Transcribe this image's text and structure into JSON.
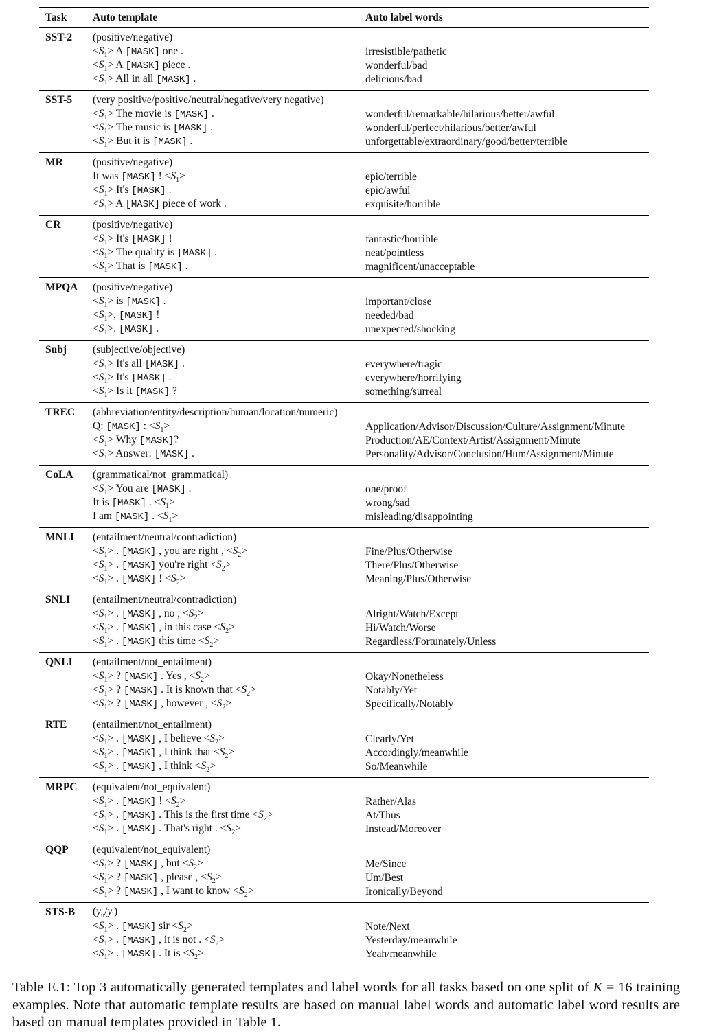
{
  "table": {
    "headers": [
      "Task",
      "Auto template",
      "Auto label words"
    ],
    "rows": [
      {
        "task": "SST-2",
        "labels": "(positive/negative)",
        "items": [
          [
            "<S1> A [MASK] one .",
            "irresistible/pathetic"
          ],
          [
            "<S1> A [MASK] piece .",
            "wonderful/bad"
          ],
          [
            "<S1> All in all [MASK] .",
            "delicious/bad"
          ]
        ]
      },
      {
        "task": "SST-5",
        "labels": "(very positive/positive/neutral/negative/very negative)",
        "items": [
          [
            "<S1> The movie is [MASK] .",
            "wonderful/remarkable/hilarious/better/awful"
          ],
          [
            "<S1> The music is [MASK] .",
            "wonderful/perfect/hilarious/better/awful"
          ],
          [
            "<S1> But it is [MASK] .",
            "unforgettable/extraordinary/good/better/terrible"
          ]
        ]
      },
      {
        "task": "MR",
        "labels": "(positive/negative)",
        "items": [
          [
            "It was [MASK] ! <S1>",
            "epic/terrible"
          ],
          [
            "<S1> It's [MASK] .",
            "epic/awful"
          ],
          [
            "<S1> A [MASK] piece of work .",
            "exquisite/horrible"
          ]
        ]
      },
      {
        "task": "CR",
        "labels": "(positive/negative)",
        "items": [
          [
            "<S1> It's [MASK] !",
            "fantastic/horrible"
          ],
          [
            "<S1> The quality is [MASK] .",
            "neat/pointless"
          ],
          [
            "<S1> That is [MASK] .",
            "magnificent/unacceptable"
          ]
        ]
      },
      {
        "task": "MPQA",
        "labels": "(positive/negative)",
        "items": [
          [
            "<S1> is [MASK] .",
            "important/close"
          ],
          [
            "<S1>, [MASK] !",
            "needed/bad"
          ],
          [
            "<S1>. [MASK] .",
            "unexpected/shocking"
          ]
        ]
      },
      {
        "task": "Subj",
        "labels": "(subjective/objective)",
        "items": [
          [
            "<S1> It's all [MASK] .",
            "everywhere/tragic"
          ],
          [
            "<S1> It's [MASK] .",
            "everywhere/horrifying"
          ],
          [
            "<S1> Is it [MASK] ?",
            "something/surreal"
          ]
        ]
      },
      {
        "task": "TREC",
        "labels": "(abbreviation/entity/description/human/location/numeric)",
        "items": [
          [
            "Q: [MASK] : <S1>",
            "Application/Advisor/Discussion/Culture/Assignment/Minute"
          ],
          [
            "<S1> Why [MASK]?",
            "Production/AE/Context/Artist/Assignment/Minute"
          ],
          [
            "<S1> Answer: [MASK] .",
            "Personality/Advisor/Conclusion/Hum/Assignment/Minute"
          ]
        ]
      },
      {
        "task": "CoLA",
        "labels": "(grammatical/not_grammatical)",
        "items": [
          [
            "<S1> You are [MASK] .",
            "one/proof"
          ],
          [
            "It is [MASK] . <S1>",
            "wrong/sad"
          ],
          [
            "I am [MASK] . <S1>",
            "misleading/disappointing"
          ]
        ]
      },
      {
        "task": "MNLI",
        "labels": "(entailment/neutral/contradiction)",
        "items": [
          [
            "<S1> . [MASK] , you are right , <S2>",
            "Fine/Plus/Otherwise"
          ],
          [
            "<S1> . [MASK] you're right <S2>",
            "There/Plus/Otherwise"
          ],
          [
            "<S1> . [MASK] ! <S2>",
            "Meaning/Plus/Otherwise"
          ]
        ]
      },
      {
        "task": "SNLI",
        "labels": "(entailment/neutral/contradiction)",
        "items": [
          [
            "<S1> . [MASK] , no , <S2>",
            "Alright/Watch/Except"
          ],
          [
            "<S1> . [MASK] , in this case <S2>",
            "Hi/Watch/Worse"
          ],
          [
            "<S1> . [MASK] this time <S2>",
            "Regardless/Fortunately/Unless"
          ]
        ]
      },
      {
        "task": "QNLI",
        "labels": "(entailment/not_entailment)",
        "items": [
          [
            "<S1> ? [MASK] . Yes , <S2>",
            "Okay/Nonetheless"
          ],
          [
            "<S1> ? [MASK] . It is known that <S2>",
            "Notably/Yet"
          ],
          [
            "<S1> ? [MASK] , however , <S2>",
            "Specifically/Notably"
          ]
        ]
      },
      {
        "task": "RTE",
        "labels": "(entailment/not_entailment)",
        "items": [
          [
            "<S1> . [MASK] , I believe <S2>",
            "Clearly/Yet"
          ],
          [
            "<S1> . [MASK] , I think that <S2>",
            "Accordingly/meanwhile"
          ],
          [
            "<S1> . [MASK] , I think <S2>",
            "So/Meanwhile"
          ]
        ]
      },
      {
        "task": "MRPC",
        "labels": "(equivalent/not_equivalent)",
        "items": [
          [
            "<S1> . [MASK] ! <S2>",
            "Rather/Alas"
          ],
          [
            "<S1> . [MASK] . This is the first time <S2>",
            "At/Thus"
          ],
          [
            "<S1> . [MASK] . That's right . <S2>",
            "Instead/Moreover"
          ]
        ]
      },
      {
        "task": "QQP",
        "labels": "(equivalent/not_equivalent)",
        "items": [
          [
            "<S1> ? [MASK] , but <S2>",
            "Me/Since"
          ],
          [
            "<S1> ? [MASK] , please , <S2>",
            "Um/Best"
          ],
          [
            "<S1> ? [MASK] , I want to know <S2>",
            "Ironically/Beyond"
          ]
        ]
      },
      {
        "task": "STS-B",
        "labels": "(yu/yl)",
        "items": [
          [
            "<S1> . [MASK] sir <S2>",
            "Note/Next"
          ],
          [
            "<S1> . [MASK] , it is not . <S2>",
            "Yesterday/meanwhile"
          ],
          [
            "<S1> . [MASK] . It is <S2>",
            "Yeah/meanwhile"
          ]
        ]
      }
    ]
  },
  "caption": "Table E.1: Top 3 automatically generated templates and label words for all tasks based on one split of K = 16 training examples. Note that automatic template results are based on manual label words and automatic label word results are based on manual templates provided in Table 1."
}
